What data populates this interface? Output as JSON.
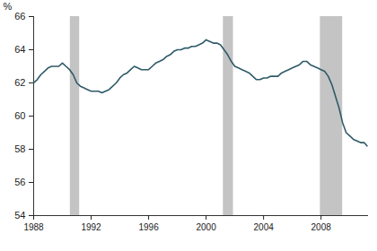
{
  "chart_data": {
    "type": "line",
    "ylabel": "%",
    "color": "#2f5b68",
    "x": [
      1988,
      1988.25,
      1988.5,
      1988.75,
      1989,
      1989.25,
      1989.5,
      1989.75,
      1990,
      1990.25,
      1990.5,
      1990.75,
      1991,
      1991.25,
      1991.5,
      1991.75,
      1992,
      1992.25,
      1992.5,
      1992.75,
      1993,
      1993.25,
      1993.5,
      1993.75,
      1994,
      1994.25,
      1994.5,
      1994.75,
      1995,
      1995.25,
      1995.5,
      1995.75,
      1996,
      1996.25,
      1996.5,
      1996.75,
      1997,
      1997.25,
      1997.5,
      1997.75,
      1998,
      1998.25,
      1998.5,
      1998.75,
      1999,
      1999.25,
      1999.5,
      1999.75,
      2000,
      2000.25,
      2000.5,
      2000.75,
      2001,
      2001.25,
      2001.5,
      2001.75,
      2002,
      2002.25,
      2002.5,
      2002.75,
      2003,
      2003.25,
      2003.5,
      2003.75,
      2004,
      2004.25,
      2004.5,
      2004.75,
      2005,
      2005.25,
      2005.5,
      2005.75,
      2006,
      2006.25,
      2006.5,
      2006.75,
      2007,
      2007.25,
      2007.5,
      2007.75,
      2008,
      2008.25,
      2008.5,
      2008.75,
      2009,
      2009.25,
      2009.5,
      2009.75,
      2010,
      2010.25,
      2010.5,
      2010.75,
      2011,
      2011.2
    ],
    "values": [
      62.0,
      62.2,
      62.5,
      62.7,
      62.9,
      63.0,
      63.0,
      63.0,
      63.2,
      63.0,
      62.8,
      62.5,
      62.0,
      61.8,
      61.7,
      61.6,
      61.5,
      61.5,
      61.5,
      61.4,
      61.5,
      61.6,
      61.8,
      62.0,
      62.3,
      62.5,
      62.6,
      62.8,
      63.0,
      62.9,
      62.8,
      62.8,
      62.8,
      63.0,
      63.2,
      63.3,
      63.4,
      63.6,
      63.7,
      63.9,
      64.0,
      64.0,
      64.1,
      64.1,
      64.2,
      64.2,
      64.3,
      64.4,
      64.6,
      64.5,
      64.4,
      64.4,
      64.3,
      64.0,
      63.7,
      63.3,
      63.0,
      62.9,
      62.8,
      62.7,
      62.6,
      62.4,
      62.2,
      62.2,
      62.3,
      62.3,
      62.4,
      62.4,
      62.4,
      62.6,
      62.7,
      62.8,
      62.9,
      63.0,
      63.1,
      63.3,
      63.3,
      63.1,
      63.0,
      62.9,
      62.8,
      62.7,
      62.4,
      61.9,
      61.2,
      60.5,
      59.6,
      59.0,
      58.8,
      58.6,
      58.5,
      58.4,
      58.4,
      58.2
    ],
    "recessions": [
      {
        "start": 1990.55,
        "end": 1991.2
      },
      {
        "start": 2001.2,
        "end": 2001.9
      },
      {
        "start": 2007.95,
        "end": 2009.5
      }
    ],
    "xlim": [
      1988,
      2011.3
    ],
    "xticks": [
      1988,
      1992,
      1996,
      2000,
      2004,
      2008
    ],
    "ylim": [
      54,
      66
    ],
    "yticks": [
      54,
      56,
      58,
      60,
      62,
      64,
      66
    ],
    "grid": false
  }
}
